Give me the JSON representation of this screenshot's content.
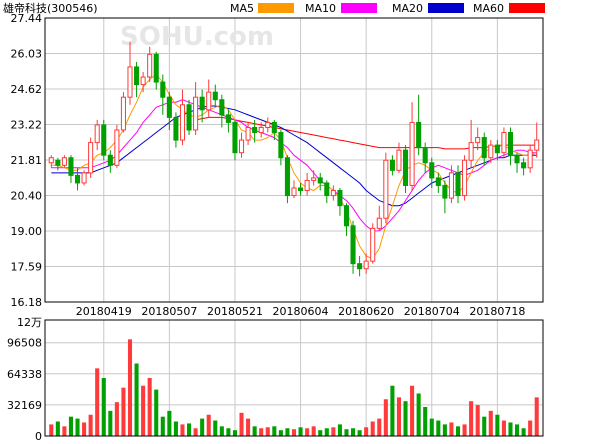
{
  "title": "雄帝科技(300546)",
  "watermark": "SOHU.com",
  "colors": {
    "up": "#ff3a3a",
    "down": "#00a000",
    "ma5": "#ff9900",
    "ma10": "#ff00ff",
    "ma20": "#0000cc",
    "ma60": "#ff0000",
    "grid": "#c8c8c8",
    "frame": "#000000"
  },
  "legend": [
    {
      "label": "MA5",
      "color": "#ff9900"
    },
    {
      "label": "MA10",
      "color": "#ff00ff"
    },
    {
      "label": "MA20",
      "color": "#0000cc"
    },
    {
      "label": "MA60",
      "color": "#ff0000"
    }
  ],
  "chart_data": [
    {
      "type": "candlestick",
      "title": "雄帝科技(300546)",
      "y_ticks": [
        "27.44",
        "26.03",
        "24.62",
        "23.22",
        "21.81",
        "20.40",
        "19.00",
        "17.59",
        "16.18"
      ],
      "ylim": [
        16.18,
        27.44
      ],
      "x_tick_labels": [
        "20180419",
        "20180507",
        "20180521",
        "20180604",
        "20180620",
        "20180704",
        "20180718"
      ],
      "x_tick_index": [
        8,
        18,
        28,
        38,
        48,
        58,
        68
      ],
      "grid": true,
      "candles": [
        [
          21.7,
          21.9,
          21.5,
          22.0
        ],
        [
          21.8,
          21.6,
          21.4,
          21.9
        ],
        [
          21.6,
          21.9,
          21.5,
          22.0
        ],
        [
          21.9,
          21.2,
          20.9,
          22.0
        ],
        [
          21.2,
          20.9,
          20.6,
          21.5
        ],
        [
          20.9,
          21.3,
          20.8,
          21.4
        ],
        [
          21.3,
          22.5,
          21.1,
          22.7
        ],
        [
          22.5,
          23.2,
          22.2,
          23.4
        ],
        [
          23.2,
          22.0,
          21.8,
          23.4
        ],
        [
          22.0,
          21.6,
          21.3,
          22.2
        ],
        [
          21.6,
          23.0,
          21.5,
          23.2
        ],
        [
          23.0,
          24.3,
          22.9,
          24.5
        ],
        [
          24.3,
          25.5,
          24.0,
          26.5
        ],
        [
          25.5,
          24.8,
          24.3,
          25.7
        ],
        [
          24.8,
          25.1,
          24.5,
          25.3
        ],
        [
          25.1,
          26.0,
          24.9,
          26.3
        ],
        [
          26.0,
          24.9,
          24.6,
          26.1
        ],
        [
          24.9,
          24.3,
          23.6,
          25.2
        ],
        [
          24.3,
          23.5,
          23.0,
          24.5
        ],
        [
          23.5,
          22.6,
          22.3,
          23.7
        ],
        [
          22.6,
          24.0,
          22.4,
          24.6
        ],
        [
          24.0,
          23.0,
          22.8,
          24.2
        ],
        [
          23.0,
          24.3,
          22.8,
          24.9
        ],
        [
          24.3,
          23.8,
          23.3,
          24.6
        ],
        [
          23.8,
          24.5,
          23.5,
          25.0
        ],
        [
          24.5,
          24.2,
          23.9,
          24.8
        ],
        [
          24.2,
          23.6,
          23.1,
          24.4
        ],
        [
          23.6,
          23.3,
          22.9,
          23.8
        ],
        [
          23.3,
          22.1,
          21.8,
          23.4
        ],
        [
          22.1,
          22.6,
          21.9,
          22.9
        ],
        [
          22.6,
          23.1,
          22.4,
          23.3
        ],
        [
          23.1,
          22.9,
          22.5,
          23.4
        ],
        [
          22.9,
          23.1,
          22.7,
          23.3
        ],
        [
          23.1,
          23.3,
          22.9,
          23.5
        ],
        [
          23.3,
          22.9,
          22.6,
          23.4
        ],
        [
          22.9,
          21.9,
          21.6,
          23.0
        ],
        [
          21.9,
          20.4,
          20.1,
          22.0
        ],
        [
          20.4,
          20.7,
          20.3,
          21.0
        ],
        [
          20.7,
          20.6,
          20.4,
          20.9
        ],
        [
          20.6,
          21.0,
          20.4,
          21.3
        ],
        [
          21.0,
          21.1,
          20.8,
          21.4
        ],
        [
          21.1,
          20.9,
          20.6,
          21.3
        ],
        [
          20.9,
          20.4,
          20.1,
          21.0
        ],
        [
          20.4,
          20.6,
          20.2,
          20.8
        ],
        [
          20.6,
          20.0,
          19.6,
          20.7
        ],
        [
          20.0,
          19.2,
          18.8,
          20.1
        ],
        [
          19.2,
          17.7,
          17.3,
          19.4
        ],
        [
          17.7,
          17.5,
          17.2,
          18.0
        ],
        [
          17.5,
          17.8,
          17.3,
          18.1
        ],
        [
          17.8,
          19.1,
          17.7,
          19.3
        ],
        [
          19.1,
          19.5,
          19.0,
          20.0
        ],
        [
          19.5,
          21.8,
          19.3,
          22.1
        ],
        [
          21.8,
          21.4,
          21.2,
          22.0
        ],
        [
          21.4,
          22.2,
          21.3,
          22.5
        ],
        [
          22.2,
          20.8,
          20.5,
          22.4
        ],
        [
          20.8,
          23.3,
          20.6,
          24.1
        ],
        [
          23.3,
          22.3,
          22.0,
          24.4
        ],
        [
          22.3,
          21.7,
          21.3,
          22.5
        ],
        [
          21.7,
          21.1,
          20.7,
          21.9
        ],
        [
          21.1,
          20.8,
          20.5,
          21.3
        ],
        [
          20.8,
          20.3,
          19.7,
          21.0
        ],
        [
          20.3,
          21.3,
          20.1,
          21.6
        ],
        [
          21.3,
          20.4,
          20.1,
          21.6
        ],
        [
          20.4,
          21.8,
          20.2,
          22.0
        ],
        [
          21.8,
          22.5,
          21.5,
          23.4
        ],
        [
          22.5,
          22.7,
          22.2,
          23.1
        ],
        [
          22.7,
          21.9,
          21.6,
          22.9
        ],
        [
          21.9,
          22.4,
          21.7,
          22.6
        ],
        [
          22.4,
          22.1,
          21.8,
          22.6
        ],
        [
          22.1,
          22.9,
          21.9,
          23.1
        ],
        [
          22.9,
          22.0,
          21.6,
          23.1
        ],
        [
          22.0,
          21.7,
          21.3,
          22.1
        ],
        [
          21.7,
          21.5,
          21.2,
          21.9
        ],
        [
          21.5,
          22.2,
          21.3,
          22.4
        ],
        [
          22.2,
          22.6,
          21.9,
          23.3
        ]
      ],
      "ma5": [
        21.6,
        21.6,
        21.5,
        21.4,
        21.4,
        21.6,
        21.7,
        22.0,
        22.1,
        22.3,
        22.6,
        23.0,
        23.6,
        24.1,
        24.7,
        25.0,
        25.2,
        24.9,
        24.4,
        24.0,
        23.8,
        23.6,
        23.5,
        23.6,
        23.8,
        23.9,
        24.0,
        23.8,
        23.4,
        23.0,
        22.9,
        22.6,
        22.6,
        22.7,
        22.9,
        22.6,
        21.9,
        21.3,
        20.9,
        20.7,
        20.6,
        20.8,
        20.8,
        20.6,
        20.3,
        19.8,
        19.1,
        18.4,
        18.0,
        17.9,
        18.3,
        19.2,
        20.0,
        20.8,
        21.4,
        21.6,
        21.7,
        21.6,
        21.4,
        21.3,
        20.9,
        20.6,
        20.5,
        20.8,
        21.3,
        21.8,
        22.1,
        22.3,
        22.4,
        22.4,
        22.2,
        22.1,
        22.0,
        22.0,
        22.1
      ],
      "ma10": [
        21.5,
        21.5,
        21.5,
        21.5,
        21.5,
        21.5,
        21.5,
        21.6,
        21.7,
        21.8,
        22.0,
        22.3,
        22.6,
        22.9,
        23.3,
        23.6,
        23.9,
        24.0,
        24.1,
        24.1,
        24.2,
        24.1,
        24.0,
        23.9,
        23.8,
        23.7,
        23.6,
        23.5,
        23.4,
        23.3,
        23.1,
        23.0,
        22.9,
        22.8,
        22.7,
        22.5,
        22.3,
        22.0,
        21.8,
        21.6,
        21.3,
        21.0,
        20.8,
        20.6,
        20.4,
        20.2,
        19.9,
        19.5,
        19.2,
        19.0,
        19.0,
        19.2,
        19.5,
        19.8,
        20.2,
        20.6,
        21.0,
        21.3,
        21.5,
        21.6,
        21.5,
        21.4,
        21.3,
        21.2,
        21.3,
        21.4,
        21.6,
        21.8,
        21.9,
        22.0,
        22.1,
        22.2,
        22.2,
        22.1,
        22.1
      ],
      "ma20": [
        21.3,
        21.3,
        21.3,
        21.3,
        21.3,
        21.3,
        21.3,
        21.4,
        21.5,
        21.6,
        21.7,
        21.9,
        22.1,
        22.3,
        22.5,
        22.7,
        22.9,
        23.1,
        23.3,
        23.5,
        23.6,
        23.7,
        23.8,
        23.9,
        23.95,
        23.95,
        23.9,
        23.85,
        23.8,
        23.7,
        23.6,
        23.5,
        23.4,
        23.3,
        23.2,
        23.1,
        22.95,
        22.8,
        22.65,
        22.5,
        22.3,
        22.1,
        21.9,
        21.7,
        21.5,
        21.3,
        21.1,
        20.9,
        20.6,
        20.4,
        20.2,
        20.1,
        20.0,
        20.0,
        20.1,
        20.3,
        20.5,
        20.7,
        20.9,
        21.0,
        21.1,
        21.2,
        21.3,
        21.4,
        21.5,
        21.6,
        21.7,
        21.8,
        21.9,
        21.9,
        22.0,
        22.0,
        22.0,
        22.0,
        22.0
      ],
      "ma60": [
        null,
        null,
        null,
        null,
        null,
        null,
        null,
        null,
        null,
        null,
        null,
        null,
        null,
        null,
        null,
        null,
        null,
        null,
        null,
        null,
        null,
        null,
        23.4,
        23.45,
        23.5,
        23.5,
        23.5,
        23.45,
        23.4,
        23.35,
        23.3,
        23.25,
        23.2,
        23.15,
        23.1,
        23.05,
        23.0,
        22.95,
        22.9,
        22.85,
        22.8,
        22.75,
        22.7,
        22.65,
        22.6,
        22.55,
        22.5,
        22.45,
        22.4,
        22.35,
        22.3,
        22.3,
        22.3,
        22.3,
        22.3,
        22.3,
        22.3,
        22.3,
        22.3,
        22.3,
        22.25,
        22.25,
        22.25,
        22.25,
        22.3,
        22.3,
        22.3,
        22.35,
        22.35,
        22.4,
        22.4,
        22.4,
        22.4,
        22.4,
        22.4
      ]
    },
    {
      "type": "bar",
      "unit_label": "12万",
      "y_ticks": [
        "96508",
        "64338",
        "32169",
        "0"
      ],
      "ylim": [
        0,
        120000
      ],
      "values": [
        12000,
        15000,
        10000,
        20000,
        18000,
        14000,
        22000,
        70000,
        60000,
        26000,
        35000,
        50000,
        100000,
        75000,
        52000,
        60000,
        48000,
        20000,
        26000,
        15000,
        12000,
        13000,
        8000,
        18000,
        22000,
        16000,
        10000,
        8000,
        6000,
        24000,
        18000,
        10000,
        8000,
        9000,
        10000,
        6000,
        8000,
        7000,
        9000,
        8000,
        10000,
        6000,
        8000,
        9000,
        12000,
        7000,
        8000,
        6000,
        9000,
        15000,
        18000,
        38000,
        52000,
        40000,
        36000,
        52000,
        44000,
        30000,
        18000,
        16000,
        12000,
        14000,
        10000,
        12000,
        36000,
        32000,
        20000,
        26000,
        22000,
        16000,
        14000,
        12000,
        8000,
        16000,
        40000
      ]
    }
  ]
}
